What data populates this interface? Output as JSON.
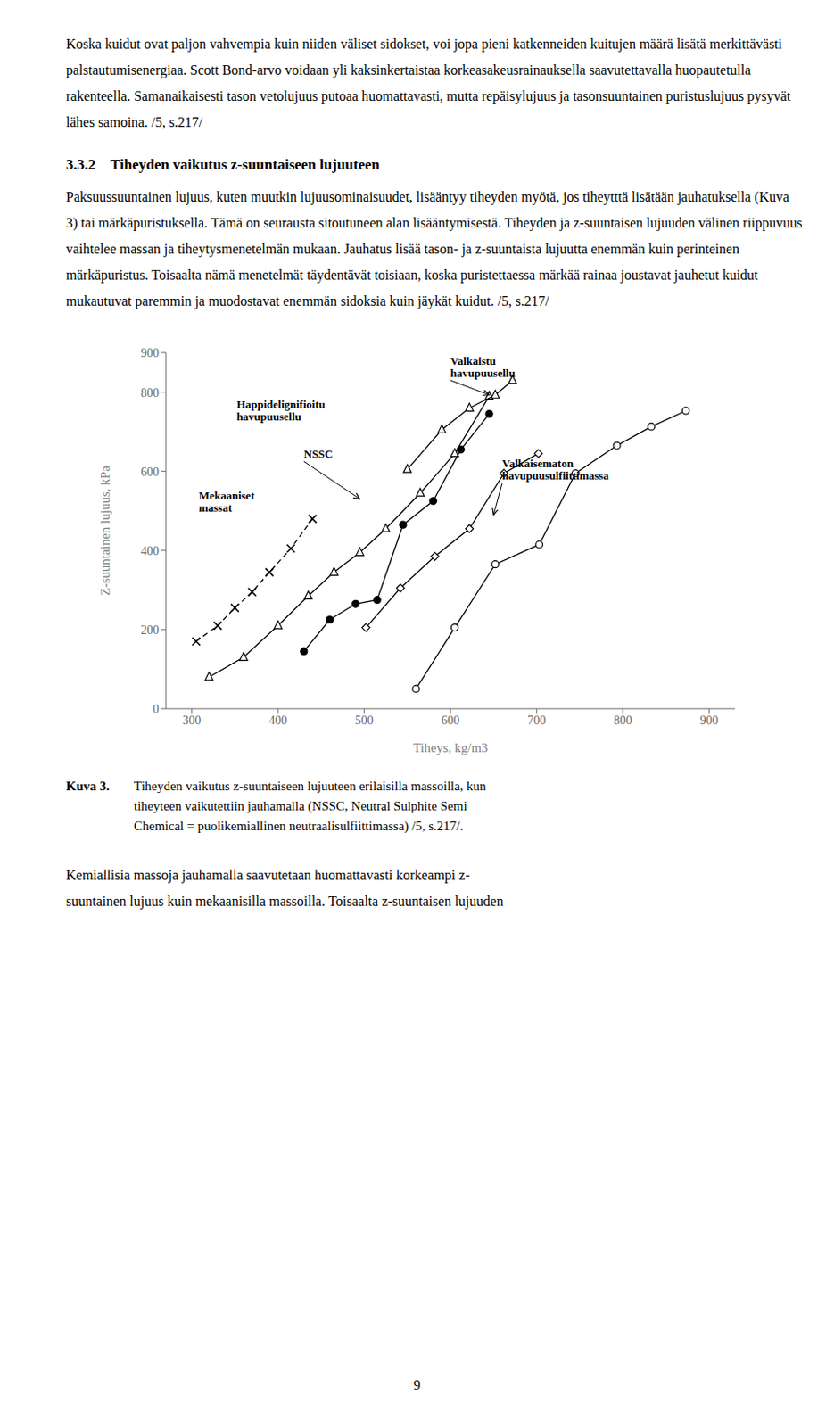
{
  "top_paragraph": "Koska kuidut ovat paljon vahvempia kuin niiden väliset sidokset, voi jopa pieni katkenneiden kuitujen määrä lisätä merkittävästi palstautumisenergiaa. Scott Bond-arvo voidaan yli kaksinkertaistaa korkeasakeusrainauksella saavutettavalla huopautetulla rakenteella. Samanaikaisesti tason vetolujuus putoaa huomattavasti, mutta repäisylujuus ja tasonsuuntainen puristuslujuus pysyvät lähes samoina. /5, s.217/",
  "section_header": "3.3.2 Tiheyden vaikutus z-suuntaiseen lujuuteen",
  "body_paragraph": "Paksuussuuntainen lujuus, kuten muutkin lujuusominaisuudet, lisääntyy tiheyden myötä, jos tiheytttä lisätään jauhatuksella (Kuva 3) tai märkäpuristuksella. Tämä on seurausta sitoutuneen alan lisääntymisestä. Tiheyden ja z-suuntaisen lujuuden välinen riippuvuus vaihtelee massan ja tiheytysmenetelmän mukaan. Jauhatus lisää tason- ja z-suuntaista lujuutta enemmän kuin perinteinen märkäpuristus. Toisaalta nämä menetelmät täydentävät toisiaan, koska puristettaessa märkää rainaa joustavat jauhetut kuidut mukautuvat paremmin ja muodostavat enemmän sidoksia kuin jäykät kuidut. /5, s.217/",
  "chart_data": {
    "type": "line",
    "xlabel": "Tiheys, kg/m3",
    "ylabel": "Z-suuntainen lujuus, kPa",
    "xlim": [
      270,
      930
    ],
    "ylim": [
      0,
      900
    ],
    "xticks": [
      300,
      400,
      500,
      600,
      700,
      800,
      900
    ],
    "yticks": [
      0,
      200,
      400,
      600,
      800,
      900
    ],
    "grid": false,
    "series": [
      {
        "x": [
          305,
          330,
          350,
          370,
          390,
          415,
          440
        ],
        "values": [
          170,
          210,
          255,
          295,
          345,
          405,
          480
        ],
        "color": "#000000",
        "marker": "x",
        "line_style": "dashed"
      },
      {
        "x": [
          320,
          360,
          400,
          435,
          465,
          495,
          525,
          565,
          605,
          645
        ],
        "values": [
          80,
          130,
          210,
          285,
          345,
          395,
          455,
          545,
          645,
          790
        ],
        "color": "#000000",
        "marker": "triangle-open",
        "line_style": "solid"
      },
      {
        "x": [
          430,
          460,
          490,
          515,
          545,
          580,
          612,
          645
        ],
        "values": [
          145,
          225,
          265,
          275,
          465,
          525,
          655,
          745
        ],
        "color": "#000000",
        "marker": "circle-filled",
        "line_style": "solid"
      },
      {
        "x": [
          550,
          590,
          622,
          652,
          672
        ],
        "values": [
          605,
          705,
          760,
          793,
          830
        ],
        "color": "#000000",
        "marker": "triangle-open",
        "line_style": "solid"
      },
      {
        "x": [
          560,
          605,
          652,
          703,
          745,
          793,
          833,
          873
        ],
        "values": [
          50,
          205,
          365,
          415,
          595,
          665,
          713,
          753
        ],
        "color": "#000000",
        "marker": "circle-open",
        "line_style": "solid"
      },
      {
        "x": [
          502,
          542,
          582,
          622,
          662,
          702
        ],
        "values": [
          205,
          305,
          385,
          455,
          595,
          645
        ],
        "color": "#000000",
        "marker": "diamond-open",
        "line_style": "solid"
      }
    ],
    "annotations": [
      {
        "text": "Mekaaniset\nmassat",
        "x": 308,
        "y": 490
      },
      {
        "text": "Happidelignifioitu\nhavupuusellu",
        "x": 352,
        "y": 720
      },
      {
        "text": "NSSC",
        "x": 430,
        "y": 625,
        "arrow_to": [
          495,
          530
        ]
      },
      {
        "text": "Valkaistu\nhavupuusellu",
        "x": 600,
        "y": 830,
        "arrow_to": [
          645,
          793
        ]
      },
      {
        "text": "Valkaisematon\nhavupuusulfiittimassa",
        "x": 660,
        "y": 570,
        "arrow_to": [
          650,
          490
        ]
      }
    ]
  },
  "caption_label": "Kuva 3.",
  "caption_text": "Tiheyden vaikutus z-suuntaiseen lujuuteen erilaisilla massoilla, kun\ntiheyteen vaikutettiin jauhamalla (NSSC, Neutral Sulphite Semi\nChemical = puolikemiallinen neutraalisulfiittimassa) /5, s.217/.",
  "footer": [
    "Kemiallisia massoja jauhamalla saavutetaan huomattavasti korkeampi z-",
    "suuntainen lujuus kuin mekaanisilla massoilla. Toisaalta z-suuntaisen lujuuden"
  ],
  "page_number": "9"
}
